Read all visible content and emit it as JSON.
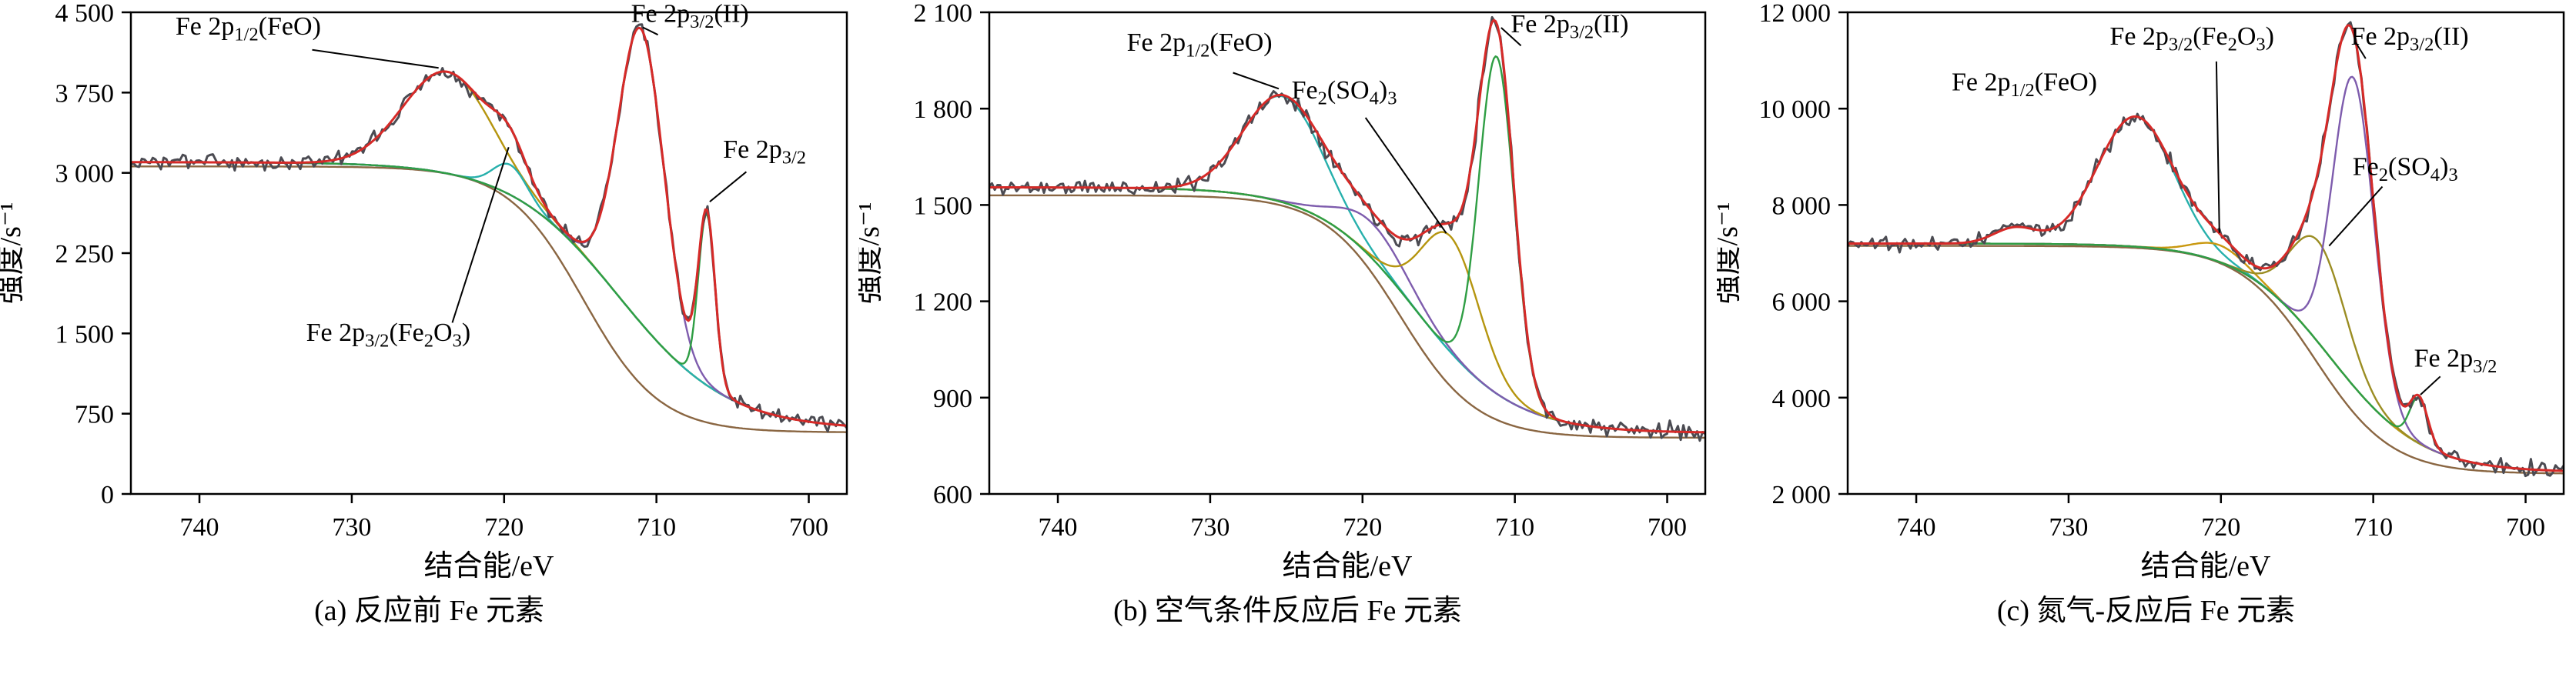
{
  "figure": {
    "background_color": "#ffffff",
    "text_color": "#000000",
    "raw_color": "#4b4b52",
    "envelope_color": "#d62a28"
  },
  "chart_data": [
    {
      "type": "line",
      "caption": "(a) 反应前 Fe 元素",
      "xlabel": "结合能/eV",
      "ylabel": "强度/s⁻¹",
      "x_range": [
        744.5,
        697.5
      ],
      "x_axis_reversed": true,
      "x_ticks": [
        740,
        730,
        720,
        710,
        700
      ],
      "x_tick_labels": [
        "740",
        "730",
        "720",
        "710",
        "700"
      ],
      "y_range": [
        0,
        4500
      ],
      "y_ticks": [
        0,
        750,
        1500,
        2250,
        3000,
        3750,
        4500
      ],
      "y_tick_labels": [
        "0",
        "750",
        "1 500",
        "2 250",
        "3 000",
        "3 750",
        "4 500"
      ],
      "grid": false,
      "legend": false,
      "background": {
        "left": 3100,
        "right": 600,
        "center": 712.5,
        "width": 3.6
      },
      "series": [
        {
          "name": "background-lower",
          "color": "#8a6642",
          "role": "background2",
          "params": {
            "left": 3060,
            "right": 575,
            "center": 714.8,
            "width": 2.5
          }
        },
        {
          "name": "background",
          "color": "#27b0ac",
          "role": "background"
        },
        {
          "name": "peak-fe2p12-feo",
          "color": "#b5950f",
          "role": "component",
          "peaks": [
            {
              "center": 723.7,
              "amplitude": 950,
              "sigma": 2.9
            }
          ]
        },
        {
          "name": "peak-fe2p32-fe2o3",
          "color": "#27b0ac",
          "role": "component",
          "peaks": [
            {
              "center": 719.6,
              "amplitude": 280,
              "sigma": 1.1
            }
          ]
        },
        {
          "name": "peak-fe2p32-ii",
          "color": "#7e5cad",
          "role": "component",
          "peaks": [
            {
              "center": 711.0,
              "amplitude": 2750,
              "sigma": 1.5
            }
          ]
        },
        {
          "name": "peak-fe2p32-metal",
          "color": "#2f9e44",
          "role": "component",
          "peaks": [
            {
              "center": 706.7,
              "amplitude": 1600,
              "sigma": 0.55
            }
          ]
        },
        {
          "name": "raw-data",
          "color": "#4b4b52",
          "role": "raw",
          "noise": 65,
          "seed": 3
        },
        {
          "name": "fit-envelope",
          "color": "#d62a28",
          "role": "envelope"
        }
      ],
      "annotations": [
        {
          "text": "Fe 2p~1/2~(FeO)",
          "x": 736.8,
          "y": 4290,
          "anchor": "middle",
          "line": [
            [
              732.6,
              4150
            ],
            [
              724.3,
              3980
            ]
          ]
        },
        {
          "text": "Fe 2p~3/2~(II)",
          "x": 707.8,
          "y": 4410,
          "anchor": "middle",
          "line": [
            [
              709.9,
              4290
            ],
            [
              710.9,
              4360
            ]
          ]
        },
        {
          "text": "Fe 2p~3/2~",
          "x": 702.9,
          "y": 3140,
          "anchor": "middle",
          "line": [
            [
              704.1,
              3010
            ],
            [
              706.5,
              2730
            ]
          ]
        },
        {
          "text": "Fe 2p~3/2~(Fe~2~O~3~)",
          "x": 727.6,
          "y": 1430,
          "anchor": "middle",
          "line": [
            [
              723.4,
              1600
            ],
            [
              719.7,
              3240
            ]
          ]
        }
      ]
    },
    {
      "type": "line",
      "caption": "(b) 空气条件反应后 Fe 元素",
      "xlabel": "结合能/eV",
      "ylabel": "强度/s⁻¹",
      "x_range": [
        744.5,
        697.5
      ],
      "x_axis_reversed": true,
      "x_ticks": [
        740,
        730,
        720,
        710,
        700
      ],
      "x_tick_labels": [
        "740",
        "730",
        "720",
        "710",
        "700"
      ],
      "y_range": [
        600,
        2100
      ],
      "y_ticks": [
        600,
        900,
        1200,
        1500,
        1800,
        2100
      ],
      "y_tick_labels": [
        "600",
        "900",
        "1 200",
        "1 500",
        "1 800",
        "2 100"
      ],
      "grid": false,
      "legend": false,
      "background": {
        "left": 1555,
        "right": 790,
        "center": 716.5,
        "width": 3.2
      },
      "series": [
        {
          "name": "background-lower",
          "color": "#8a6642",
          "role": "background2",
          "params": {
            "left": 1530,
            "right": 775,
            "center": 717.5,
            "width": 2.5
          }
        },
        {
          "name": "background",
          "color": "#27b0ac",
          "role": "background"
        },
        {
          "name": "peak-fe2p12-feo",
          "color": "#27b0ac",
          "role": "component",
          "peaks": [
            {
              "center": 725.2,
              "amplitude": 330,
              "sigma": 2.6
            }
          ]
        },
        {
          "name": "peak-broad-satellite",
          "color": "#7e5cad",
          "role": "component",
          "peaks": [
            {
              "center": 719.3,
              "amplitude": 110,
              "sigma": 2.3
            }
          ]
        },
        {
          "name": "peak-fe2so43",
          "color": "#b5950f",
          "role": "component",
          "peaks": [
            {
              "center": 714.2,
              "amplitude": 360,
              "sigma": 1.9
            }
          ]
        },
        {
          "name": "peak-fe2p32-ii",
          "color": "#2f9e44",
          "role": "component",
          "peaks": [
            {
              "center": 711.2,
              "amplitude": 1050,
              "sigma": 1.15
            }
          ]
        },
        {
          "name": "raw-data",
          "color": "#4b4b52",
          "role": "raw",
          "noise": 26,
          "seed": 11
        },
        {
          "name": "fit-envelope",
          "color": "#d62a28",
          "role": "envelope"
        }
      ],
      "annotations": [
        {
          "text": "Fe 2p~1/2~(FeO)",
          "x": 730.7,
          "y": 1980,
          "anchor": "middle",
          "line": [
            [
              728.5,
              1912
            ],
            [
              725.5,
              1862
            ]
          ]
        },
        {
          "text": "Fe~2~(SO~4~)~3~",
          "x": 721.2,
          "y": 1832,
          "anchor": "middle",
          "line": [
            [
              719.8,
              1772
            ],
            [
              714.5,
              1412
            ]
          ]
        },
        {
          "text": "Fe 2p~3/2~(II)",
          "x": 706.4,
          "y": 2038,
          "anchor": "middle",
          "line": [
            [
              709.6,
              1996
            ],
            [
              710.9,
              2052
            ]
          ]
        }
      ]
    },
    {
      "type": "line",
      "caption": "(c) 氮气-反应后 Fe 元素",
      "xlabel": "结合能/eV",
      "ylabel": "强度/s⁻¹",
      "x_range": [
        744.5,
        697.5
      ],
      "x_axis_reversed": true,
      "x_ticks": [
        740,
        730,
        720,
        710,
        700
      ],
      "x_tick_labels": [
        "740",
        "730",
        "720",
        "710",
        "700"
      ],
      "y_range": [
        2000,
        12000
      ],
      "y_ticks": [
        2000,
        4000,
        6000,
        8000,
        10000,
        12000
      ],
      "y_tick_labels": [
        "2 000",
        "4 000",
        "6 000",
        "8 000",
        "10 000",
        "12 000"
      ],
      "grid": false,
      "legend": false,
      "background": {
        "left": 7200,
        "right": 2450,
        "center": 712.8,
        "width": 3.0
      },
      "series": [
        {
          "name": "background-lower",
          "color": "#8a6642",
          "role": "background2",
          "params": {
            "left": 7150,
            "right": 2420,
            "center": 713.8,
            "width": 2.5
          }
        },
        {
          "name": "background",
          "color": "#27b0ac",
          "role": "background"
        },
        {
          "name": "peak-fe2p12-feo",
          "color": "#27b0ac",
          "role": "component",
          "peaks": [
            {
              "center": 725.6,
              "amplitude": 2700,
              "sigma": 2.5
            },
            {
              "center": 733.5,
              "amplitude": 330,
              "sigma": 1.4
            }
          ]
        },
        {
          "name": "peak-fe2p32-fe2o3",
          "color": "#c9980f",
          "role": "component",
          "peaks": [
            {
              "center": 720.1,
              "amplitude": 350,
              "sigma": 1.7
            }
          ]
        },
        {
          "name": "peak-fe2so43",
          "color": "#9b8d23",
          "role": "component",
          "peaks": [
            {
              "center": 713.6,
              "amplitude": 2100,
              "sigma": 1.8
            }
          ]
        },
        {
          "name": "peak-fe2p32-ii",
          "color": "#7e5cad",
          "role": "component",
          "peaks": [
            {
              "center": 711.3,
              "amplitude": 6400,
              "sigma": 1.35
            }
          ]
        },
        {
          "name": "peak-fe2p32-metal",
          "color": "#2f9e44",
          "role": "component",
          "peaks": [
            {
              "center": 707.0,
              "amplitude": 950,
              "sigma": 0.6
            }
          ]
        },
        {
          "name": "raw-data",
          "color": "#4b4b52",
          "role": "raw",
          "noise": 160,
          "seed": 21
        },
        {
          "name": "fit-envelope",
          "color": "#d62a28",
          "role": "envelope"
        }
      ],
      "annotations": [
        {
          "text": "Fe 2p~1/2~(FeO)",
          "x": 732.9,
          "y": 10380,
          "anchor": "middle"
        },
        {
          "text": "Fe 2p~3/2~(Fe~2~O~3~)",
          "x": 721.9,
          "y": 11330,
          "anchor": "middle",
          "line": [
            [
              720.3,
              10980
            ],
            [
              720.1,
              7420
            ]
          ]
        },
        {
          "text": "Fe 2p~3/2~(II)",
          "x": 707.6,
          "y": 11330,
          "anchor": "middle",
          "line": [
            [
              710.5,
              11040
            ],
            [
              711.2,
              11400
            ]
          ]
        },
        {
          "text": "Fe~2~(SO~4~)~3~",
          "x": 707.9,
          "y": 8620,
          "anchor": "middle",
          "line": [
            [
              709.4,
              8380
            ],
            [
              712.9,
              7150
            ]
          ]
        },
        {
          "text": "Fe 2p~3/2~",
          "x": 704.6,
          "y": 4640,
          "anchor": "middle",
          "line": [
            [
              705.6,
              4440
            ],
            [
              706.9,
              4060
            ]
          ]
        }
      ]
    }
  ]
}
